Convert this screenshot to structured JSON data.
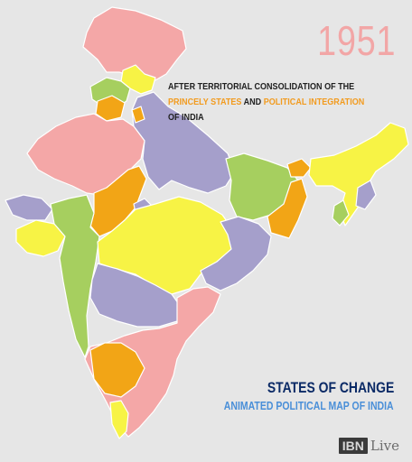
{
  "map": {
    "year": "1951",
    "caption": {
      "part1": "AFTER TERRITORIAL CONSOLIDATION OF THE ",
      "hl1": "PRINCELY STATES",
      "part2": " AND ",
      "hl2": "POLITICAL INTEGRATION",
      "part3": " OF INDIA"
    },
    "title": "STATES OF CHANGE",
    "subtitle": "ANIMATED POLITICAL MAP OF INDIA",
    "logo": {
      "mark": "IBN",
      "suffix": "Live"
    }
  },
  "colors": {
    "pink": "#f4a7a7",
    "green": "#a6cf5f",
    "purple": "#a59fcb",
    "yellow": "#f7f345",
    "orange": "#f2a516",
    "background": "#e6e6e6",
    "highlight": "#f29b1f",
    "title": "#0b2a66",
    "subtitle": "#4a8fd8"
  }
}
